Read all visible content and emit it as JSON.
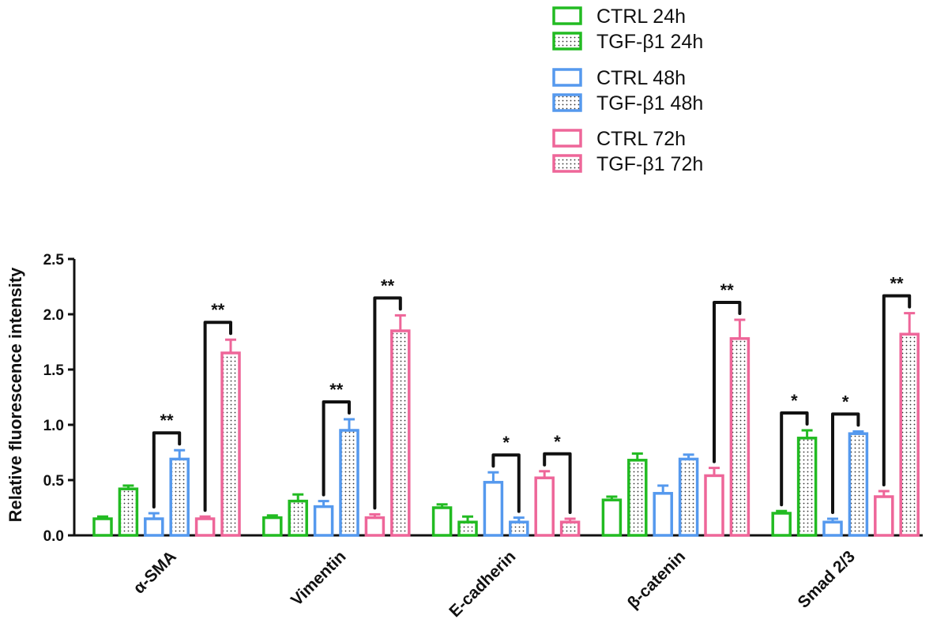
{
  "chart_data": {
    "type": "bar",
    "ylabel": "Relative fluorescence intensity",
    "xlabel": "",
    "ylim": [
      0,
      2.5
    ],
    "yticks": [
      "0.0",
      "0.5",
      "1.0",
      "1.5",
      "2.0",
      "2.5"
    ],
    "ytick_values": [
      0,
      0.5,
      1.0,
      1.5,
      2.0,
      2.5
    ],
    "grid": false,
    "legend_position": "top-right",
    "categories": [
      "α-SMA",
      "Vimentin",
      "E-cadherin",
      "β-catenin",
      "Smad 2/3"
    ],
    "series": [
      {
        "name": "CTRL 24h",
        "color": "#22bb22",
        "pattern": "open",
        "values": [
          0.15,
          0.16,
          0.25,
          0.32,
          0.2
        ],
        "errors": [
          0.02,
          0.02,
          0.03,
          0.03,
          0.02
        ]
      },
      {
        "name": "TGF-β1 24h",
        "color": "#22bb22",
        "pattern": "dotted",
        "values": [
          0.42,
          0.31,
          0.12,
          0.68,
          0.88
        ],
        "errors": [
          0.03,
          0.06,
          0.05,
          0.06,
          0.07
        ]
      },
      {
        "name": "CTRL 48h",
        "color": "#5599ee",
        "pattern": "open",
        "values": [
          0.15,
          0.26,
          0.48,
          0.38,
          0.12
        ],
        "errors": [
          0.05,
          0.05,
          0.09,
          0.07,
          0.03
        ]
      },
      {
        "name": "TGF-β1 48h",
        "color": "#5599ee",
        "pattern": "dotted",
        "values": [
          0.69,
          0.95,
          0.12,
          0.69,
          0.92
        ],
        "errors": [
          0.08,
          0.1,
          0.04,
          0.04,
          0.02
        ]
      },
      {
        "name": "CTRL 72h",
        "color": "#ee6699",
        "pattern": "open",
        "values": [
          0.15,
          0.16,
          0.52,
          0.54,
          0.35
        ],
        "errors": [
          0.02,
          0.03,
          0.06,
          0.07,
          0.05
        ]
      },
      {
        "name": "TGF-β1 72h",
        "color": "#ee6699",
        "pattern": "dotted",
        "values": [
          1.65,
          1.85,
          0.12,
          1.78,
          1.82
        ],
        "errors": [
          0.12,
          0.14,
          0.03,
          0.17,
          0.19
        ]
      }
    ],
    "significance": [
      {
        "category": 0,
        "from": 2,
        "to": 3,
        "label": "**"
      },
      {
        "category": 0,
        "from": 4,
        "to": 5,
        "label": "**"
      },
      {
        "category": 1,
        "from": 2,
        "to": 3,
        "label": "**"
      },
      {
        "category": 1,
        "from": 4,
        "to": 5,
        "label": "**"
      },
      {
        "category": 2,
        "from": 2,
        "to": 3,
        "label": "*"
      },
      {
        "category": 2,
        "from": 4,
        "to": 5,
        "label": "*"
      },
      {
        "category": 3,
        "from": 4,
        "to": 5,
        "label": "**"
      },
      {
        "category": 4,
        "from": 0,
        "to": 1,
        "label": "*"
      },
      {
        "category": 4,
        "from": 2,
        "to": 3,
        "label": "*"
      },
      {
        "category": 4,
        "from": 4,
        "to": 5,
        "label": "**"
      }
    ]
  }
}
